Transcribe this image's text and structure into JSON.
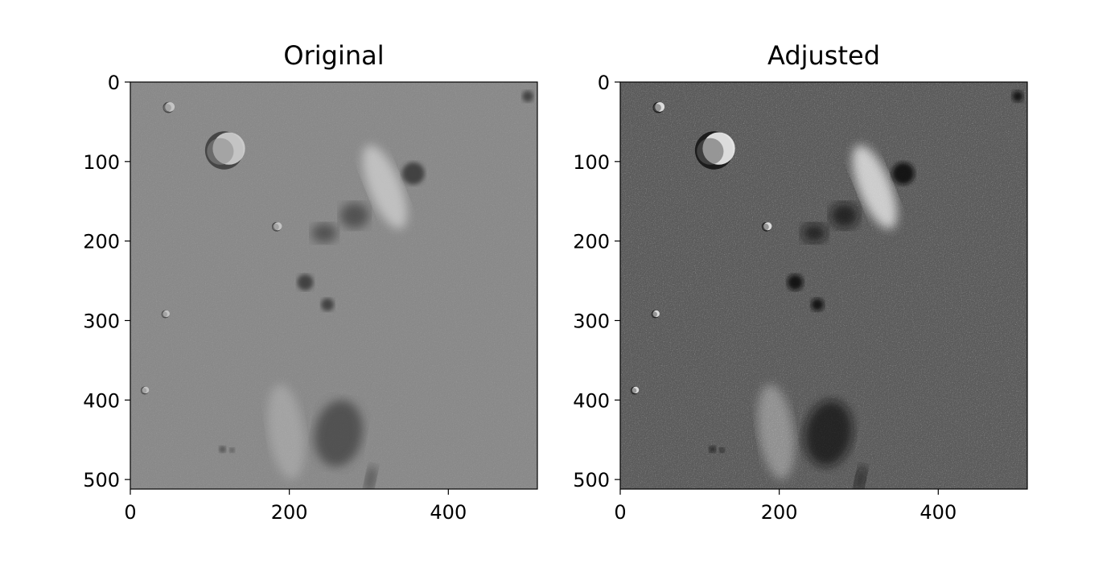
{
  "chart_data": [
    {
      "type": "image",
      "title": "Original",
      "image_kind": "grayscale",
      "contrast": "low",
      "xlim": [
        0,
        512
      ],
      "ylim": [
        512,
        0
      ],
      "xticks": [
        0,
        200,
        400
      ],
      "yticks": [
        0,
        100,
        200,
        300,
        400,
        500
      ],
      "xtick_labels": [
        "0",
        "200",
        "400"
      ],
      "ytick_labels": [
        "0",
        "100",
        "200",
        "300",
        "400",
        "500"
      ],
      "grid": false,
      "colors": {
        "background_gray": "#8a8a8a",
        "dark": "#3a3a3a",
        "light": "#d2d2d2"
      }
    },
    {
      "type": "image",
      "title": "Adjusted",
      "image_kind": "grayscale",
      "contrast": "high",
      "xlim": [
        0,
        512
      ],
      "ylim": [
        512,
        0
      ],
      "xticks": [
        0,
        200,
        400
      ],
      "yticks": [
        0,
        100,
        200,
        300,
        400,
        500
      ],
      "xtick_labels": [
        "0",
        "200",
        "400"
      ],
      "ytick_labels": [
        "0",
        "100",
        "200",
        "300",
        "400",
        "500"
      ],
      "grid": false,
      "colors": {
        "background_gray": "#5c5c5c",
        "dark": "#111111",
        "light": "#f2f2f2"
      }
    }
  ],
  "features": [
    {
      "name": "crater-large",
      "x": 118,
      "y": 86,
      "r": 24,
      "kind": "crater"
    },
    {
      "name": "crater-small",
      "x": 48,
      "y": 32,
      "r": 7,
      "kind": "crater"
    },
    {
      "name": "crater-corner",
      "x": 500,
      "y": 18,
      "r": 7,
      "kind": "dark-spot"
    },
    {
      "name": "crater-mid",
      "x": 184,
      "y": 182,
      "r": 6,
      "kind": "crater"
    },
    {
      "name": "crater-left",
      "x": 44,
      "y": 292,
      "r": 5,
      "kind": "crater"
    },
    {
      "name": "crater-left-2",
      "x": 18,
      "y": 388,
      "r": 5,
      "kind": "crater"
    },
    {
      "name": "bright-ridge",
      "x": 320,
      "y": 132,
      "rx": 20,
      "ry": 56,
      "rot": -22,
      "kind": "light-streak"
    },
    {
      "name": "dark-pit",
      "x": 356,
      "y": 115,
      "r": 14,
      "kind": "dark-spot"
    },
    {
      "name": "dark-blob-1",
      "x": 220,
      "y": 252,
      "r": 10,
      "kind": "dark-spot"
    },
    {
      "name": "dark-blob-2",
      "x": 248,
      "y": 280,
      "r": 8,
      "kind": "dark-spot"
    },
    {
      "name": "dark-region-lower",
      "x": 262,
      "y": 442,
      "rx": 30,
      "ry": 42,
      "rot": 10,
      "kind": "dark-region"
    },
    {
      "name": "light-region-lower",
      "x": 196,
      "y": 440,
      "rx": 22,
      "ry": 60,
      "rot": -8,
      "kind": "light-region"
    },
    {
      "name": "dark-streak-bottom",
      "x": 302,
      "y": 500,
      "rx": 6,
      "ry": 18,
      "rot": 12,
      "kind": "dark-region"
    },
    {
      "name": "dot-1",
      "x": 116,
      "y": 462,
      "r": 4,
      "kind": "dark-spot"
    },
    {
      "name": "dot-2",
      "x": 128,
      "y": 463,
      "r": 3,
      "kind": "dark-spot"
    },
    {
      "name": "dark-pits-left",
      "x": 244,
      "y": 190,
      "rx": 16,
      "ry": 12,
      "rot": 0,
      "kind": "dark-region"
    },
    {
      "name": "dark-pits-right",
      "x": 282,
      "y": 168,
      "rx": 18,
      "ry": 16,
      "rot": 0,
      "kind": "dark-region"
    }
  ]
}
